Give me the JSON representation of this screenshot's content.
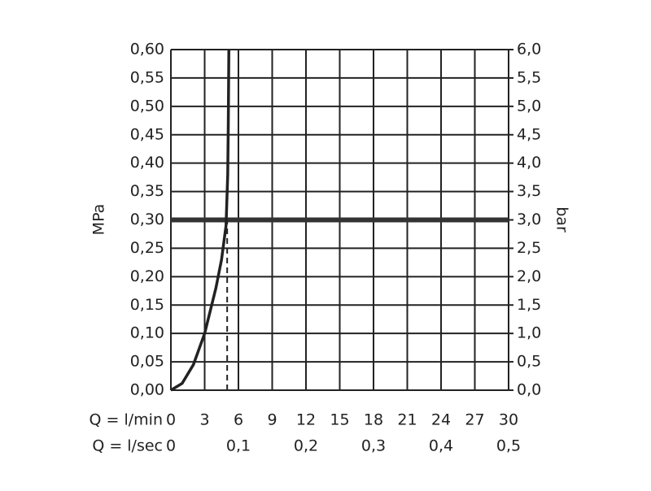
{
  "chart_data": {
    "type": "line",
    "x_label": "Q = l/min",
    "x2_label": "Q = l/sec",
    "y_label": "MPa",
    "y2_label": "bar",
    "xlim": [
      0,
      30
    ],
    "xticks": [
      0,
      3,
      6,
      9,
      12,
      15,
      18,
      21,
      24,
      27,
      30
    ],
    "x2lim": [
      0,
      0.5
    ],
    "x2ticks": [
      0,
      {
        "value": 0.1,
        "label": "0,1"
      },
      {
        "value": 0.2,
        "label": "0,2"
      },
      {
        "value": 0.3,
        "label": "0,3"
      },
      {
        "value": 0.4,
        "label": "0,4"
      },
      {
        "value": 0.5,
        "label": "0,5"
      }
    ],
    "ylim": [
      0,
      0.6
    ],
    "yticks": [
      {
        "value": 0,
        "label": "0,00"
      },
      {
        "value": 0.05,
        "label": "0,05"
      },
      {
        "value": 0.1,
        "label": "0,10"
      },
      {
        "value": 0.15,
        "label": "0,15"
      },
      {
        "value": 0.2,
        "label": "0,20"
      },
      {
        "value": 0.25,
        "label": "0,25"
      },
      {
        "value": 0.3,
        "label": "0,30"
      },
      {
        "value": 0.35,
        "label": "0,35"
      },
      {
        "value": 0.4,
        "label": "0,40"
      },
      {
        "value": 0.45,
        "label": "0,45"
      },
      {
        "value": 0.5,
        "label": "0,50"
      },
      {
        "value": 0.55,
        "label": "0,55"
      },
      {
        "value": 0.6,
        "label": "0,60"
      }
    ],
    "y2lim": [
      0,
      6
    ],
    "y2ticks": [
      {
        "value": 0,
        "label": "0,0"
      },
      {
        "value": 0.5,
        "label": "0,5"
      },
      {
        "value": 1,
        "label": "1,0"
      },
      {
        "value": 1.5,
        "label": "1,5"
      },
      {
        "value": 2,
        "label": "2,0"
      },
      {
        "value": 2.5,
        "label": "2,5"
      },
      {
        "value": 3,
        "label": "3,0"
      },
      {
        "value": 3.5,
        "label": "3,5"
      },
      {
        "value": 4,
        "label": "4,0"
      },
      {
        "value": 4.5,
        "label": "4,5"
      },
      {
        "value": 5,
        "label": "5,0"
      },
      {
        "value": 5.5,
        "label": "5,5"
      },
      {
        "value": 6,
        "label": "6,0"
      }
    ],
    "grid": true,
    "series": [
      {
        "color": "#222222",
        "x": [
          0,
          1,
          2,
          3,
          4,
          4.5,
          4.9,
          5.05,
          5.1,
          5.15
        ],
        "values": [
          0,
          0.012,
          0.045,
          0.1,
          0.18,
          0.23,
          0.29,
          0.38,
          0.47,
          0.6
        ]
      }
    ],
    "hline": {
      "y": 0.3,
      "color": "#333333"
    },
    "vline": {
      "x": 5,
      "y": 0.3,
      "color": "#222222"
    }
  }
}
